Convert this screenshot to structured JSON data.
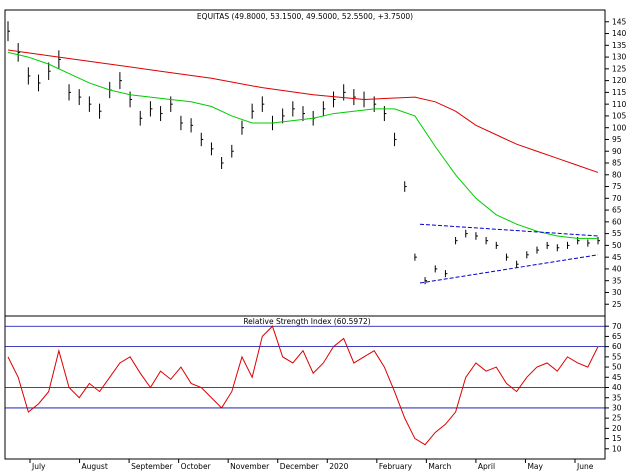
{
  "chart_data": [
    {
      "type": "line",
      "title": "EQUITAS (49.8000, 53.1500, 49.5000, 52.5500, +3.7500)",
      "x_labels": [
        "July",
        "August",
        "September",
        "October",
        "November",
        "December",
        "2020",
        "February",
        "March",
        "April",
        "May",
        "June"
      ],
      "ylim": [
        20,
        150
      ],
      "y_ticks": [
        25,
        30,
        35,
        40,
        45,
        50,
        55,
        60,
        65,
        70,
        75,
        80,
        85,
        90,
        95,
        100,
        105,
        110,
        115,
        120,
        125,
        130,
        135,
        140,
        145
      ],
      "grid": false,
      "series": [
        {
          "style": "bars",
          "color": "#000000",
          "x": [
            0,
            10,
            20,
            30,
            40,
            50,
            60,
            70,
            80,
            90,
            100,
            110,
            120,
            130,
            140,
            150,
            160,
            170,
            180,
            190,
            200,
            210,
            220,
            230,
            240,
            250,
            260,
            270,
            280,
            290,
            300,
            310,
            320,
            330,
            340,
            350,
            360,
            370,
            380,
            390,
            400,
            410,
            420,
            430,
            440,
            450,
            460,
            470,
            480,
            490,
            500,
            510,
            520,
            530,
            540,
            550,
            560,
            570,
            580
          ],
          "values": [
            141,
            132,
            122,
            119,
            124,
            129,
            115,
            113,
            110,
            107,
            116,
            120,
            112,
            104,
            108,
            106,
            110,
            102,
            101,
            95,
            91,
            85,
            90,
            100,
            107,
            110,
            102,
            105,
            108,
            106,
            104,
            108,
            112,
            115,
            113,
            112,
            110,
            106,
            95,
            75,
            45,
            35,
            40,
            38,
            52,
            55,
            54,
            52,
            50,
            45,
            42,
            46,
            48,
            50,
            49,
            50,
            52,
            51,
            52
          ]
        },
        {
          "style": "line",
          "color": "#00cc00",
          "x": [
            0,
            20,
            40,
            60,
            80,
            100,
            120,
            140,
            160,
            180,
            200,
            220,
            240,
            260,
            280,
            300,
            320,
            340,
            360,
            380,
            400,
            420,
            440,
            460,
            480,
            500,
            520,
            540,
            560,
            580
          ],
          "values": [
            132,
            130,
            127,
            123,
            119,
            116,
            114,
            113,
            112,
            111,
            109,
            105,
            102,
            102,
            103,
            104,
            106,
            107,
            108,
            108,
            105,
            92,
            80,
            70,
            63,
            59,
            56,
            54,
            53,
            53
          ]
        },
        {
          "style": "line",
          "color": "#dd0000",
          "x": [
            0,
            50,
            100,
            150,
            200,
            250,
            300,
            350,
            400,
            420,
            440,
            460,
            480,
            500,
            520,
            540,
            560,
            580
          ],
          "values": [
            133,
            130,
            127,
            124,
            121,
            117,
            114,
            112,
            113,
            111,
            107,
            101,
            97,
            93,
            90,
            87,
            84,
            81
          ]
        },
        {
          "style": "trendline",
          "color": "#0000cc",
          "x": [
            405,
            580
          ],
          "values": [
            34,
            46
          ]
        },
        {
          "style": "trendline",
          "color": "#0000cc",
          "x": [
            405,
            580
          ],
          "values": [
            59,
            54
          ]
        }
      ]
    },
    {
      "type": "line",
      "title": "Relative Strength Index (60.5972)",
      "x_labels": [
        "July",
        "August",
        "September",
        "October",
        "November",
        "December",
        "2020",
        "February",
        "March",
        "April",
        "May",
        "June"
      ],
      "ylim": [
        5,
        75
      ],
      "y_ticks": [
        10,
        15,
        20,
        25,
        30,
        35,
        40,
        45,
        50,
        55,
        60,
        65,
        70
      ],
      "reference_lines": [
        30,
        40,
        60,
        70
      ],
      "series": [
        {
          "color": "#dd0000",
          "x": [
            0,
            10,
            20,
            30,
            40,
            50,
            60,
            70,
            80,
            90,
            100,
            110,
            120,
            130,
            140,
            150,
            160,
            170,
            180,
            190,
            200,
            210,
            220,
            230,
            240,
            250,
            260,
            270,
            280,
            290,
            300,
            310,
            320,
            330,
            340,
            350,
            360,
            370,
            380,
            390,
            400,
            410,
            420,
            430,
            440,
            450,
            460,
            470,
            480,
            490,
            500,
            510,
            520,
            530,
            540,
            550,
            560,
            570,
            580
          ],
          "values": [
            55,
            45,
            28,
            32,
            38,
            58,
            40,
            35,
            42,
            38,
            45,
            52,
            55,
            47,
            40,
            48,
            44,
            50,
            42,
            40,
            35,
            30,
            38,
            55,
            45,
            65,
            70,
            55,
            52,
            58,
            47,
            52,
            60,
            64,
            52,
            55,
            58,
            50,
            38,
            25,
            15,
            12,
            18,
            22,
            28,
            45,
            52,
            48,
            50,
            42,
            38,
            45,
            50,
            52,
            48,
            55,
            52,
            50,
            60
          ]
        }
      ]
    }
  ]
}
